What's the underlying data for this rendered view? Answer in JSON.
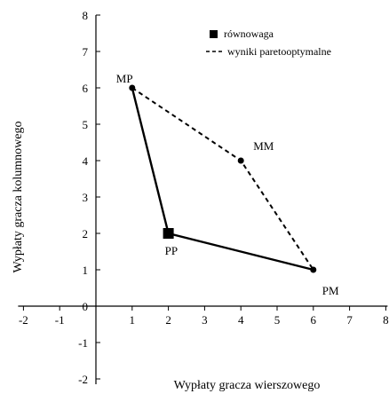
{
  "chart_data": {
    "type": "line",
    "xlabel": "Wypłaty gracza wierszowego",
    "ylabel": "Wypłaty gracza kolumnowego",
    "xlim": [
      -2,
      8
    ],
    "ylim": [
      -2,
      8
    ],
    "xticks": [
      -2,
      -1,
      0,
      1,
      2,
      3,
      4,
      5,
      6,
      7,
      8
    ],
    "yticks": [
      -2,
      -1,
      0,
      1,
      2,
      3,
      4,
      5,
      6,
      7,
      8
    ],
    "grid": false,
    "legend_position": "top-right",
    "points": [
      {
        "label": "MP",
        "x": 1,
        "y": 6
      },
      {
        "label": "MM",
        "x": 4,
        "y": 4
      },
      {
        "label": "PM",
        "x": 6,
        "y": 1
      },
      {
        "label": "PP",
        "x": 2,
        "y": 2
      }
    ],
    "series": [
      {
        "name": "równowaga",
        "style": "solid",
        "marker": "square",
        "points": [
          {
            "x": 2,
            "y": 2
          }
        ]
      },
      {
        "name": "wyniki paretooptymalne",
        "style": "dashed",
        "points": [
          {
            "x": 1,
            "y": 6
          },
          {
            "x": 4,
            "y": 4
          },
          {
            "x": 6,
            "y": 1
          }
        ]
      }
    ],
    "solid_boundary": [
      {
        "x": 1,
        "y": 6
      },
      {
        "x": 2,
        "y": 2
      },
      {
        "x": 6,
        "y": 1
      }
    ],
    "colors": {
      "line": "#000000",
      "background": "#ffffff"
    }
  }
}
